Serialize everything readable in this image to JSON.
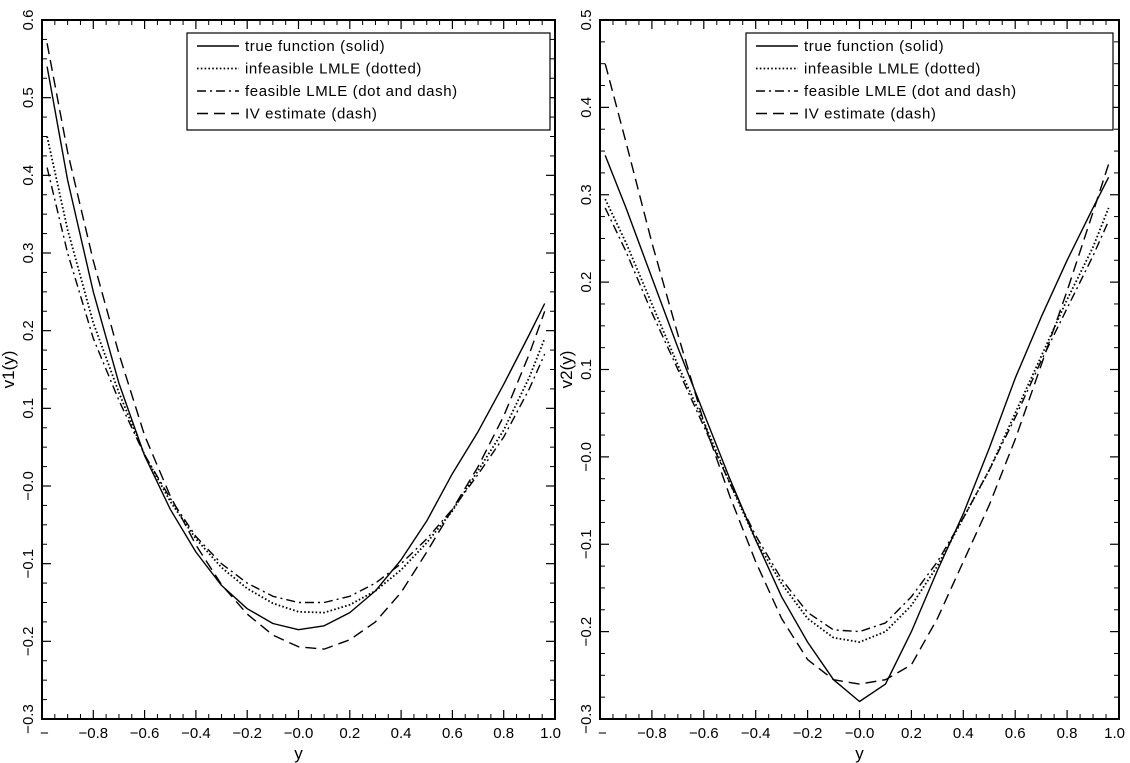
{
  "chart_data": [
    {
      "type": "line",
      "xlabel": "y",
      "ylabel": "v1(y)",
      "xlim": [
        -1.0,
        1.0
      ],
      "ylim": [
        -0.3,
        0.6
      ],
      "x_ticks": [
        -1.0,
        -0.8,
        -0.6,
        -0.4,
        -0.2,
        0.0,
        0.2,
        0.4,
        0.6,
        0.8,
        1.0
      ],
      "x_tick_labels": [
        "−",
        "−0.8",
        "−0.6",
        "−0.4",
        "−0.2",
        "−0.0",
        "0.2",
        "0.4",
        "0.6",
        "0.8",
        "1.0"
      ],
      "y_ticks": [
        -0.3,
        -0.2,
        -0.1,
        0.0,
        0.1,
        0.2,
        0.3,
        0.4,
        0.5,
        0.6
      ],
      "y_tick_labels": [
        "−0.3",
        "−0.2",
        "−0.1",
        "−0.0",
        "0.1",
        "0.2",
        "0.3",
        "0.4",
        "0.5",
        "0.6"
      ],
      "legend_position": "top-right",
      "grid": false,
      "x": [
        -0.98,
        -0.9,
        -0.8,
        -0.7,
        -0.6,
        -0.5,
        -0.4,
        -0.3,
        -0.2,
        -0.1,
        0.0,
        0.1,
        0.2,
        0.3,
        0.4,
        0.5,
        0.6,
        0.7,
        0.8,
        0.9,
        0.96
      ],
      "series": [
        {
          "name": "true function (solid)",
          "dash": "solid",
          "values": [
            0.54,
            0.394,
            0.25,
            0.132,
            0.039,
            -0.03,
            -0.085,
            -0.128,
            -0.158,
            -0.177,
            -0.185,
            -0.18,
            -0.163,
            -0.135,
            -0.095,
            -0.045,
            0.016,
            0.07,
            0.131,
            0.195,
            0.235
          ]
        },
        {
          "name": "infeasible LMLE (dotted)",
          "dash": "dotted",
          "values": [
            0.45,
            0.33,
            0.21,
            0.12,
            0.04,
            -0.02,
            -0.068,
            -0.105,
            -0.132,
            -0.151,
            -0.162,
            -0.163,
            -0.153,
            -0.135,
            -0.108,
            -0.073,
            -0.032,
            0.02,
            0.072,
            0.14,
            0.19
          ]
        },
        {
          "name": "feasible LMLE (dot and dash)",
          "dash": "dashdot",
          "values": [
            0.41,
            0.3,
            0.19,
            0.11,
            0.04,
            -0.016,
            -0.065,
            -0.1,
            -0.125,
            -0.142,
            -0.15,
            -0.15,
            -0.142,
            -0.125,
            -0.1,
            -0.068,
            -0.03,
            0.015,
            0.063,
            0.125,
            0.17
          ]
        },
        {
          "name": "IV estimate (dash)",
          "dash": "dashed",
          "values": [
            0.57,
            0.43,
            0.29,
            0.17,
            0.065,
            -0.013,
            -0.076,
            -0.127,
            -0.165,
            -0.192,
            -0.207,
            -0.21,
            -0.198,
            -0.175,
            -0.137,
            -0.085,
            -0.03,
            0.025,
            0.09,
            0.17,
            0.225
          ]
        }
      ]
    },
    {
      "type": "line",
      "xlabel": "y",
      "ylabel": "v2(y)",
      "xlim": [
        -1.0,
        1.0
      ],
      "ylim": [
        -0.3,
        0.5
      ],
      "x_ticks": [
        -1.0,
        -0.8,
        -0.6,
        -0.4,
        -0.2,
        0.0,
        0.2,
        0.4,
        0.6,
        0.8,
        1.0
      ],
      "x_tick_labels": [
        "−",
        "−0.8",
        "−0.6",
        "−0.4",
        "−0.2",
        "−0.0",
        "0.2",
        "0.4",
        "0.6",
        "0.8",
        "1.0"
      ],
      "y_ticks": [
        -0.3,
        -0.2,
        -0.1,
        0.0,
        0.1,
        0.2,
        0.3,
        0.4,
        0.5
      ],
      "y_tick_labels": [
        "−0.3",
        "−0.2",
        "−0.1",
        "−0.0",
        "0.1",
        "0.2",
        "0.3",
        "0.4",
        "0.5"
      ],
      "legend_position": "top-right",
      "grid": false,
      "x": [
        -0.98,
        -0.9,
        -0.8,
        -0.7,
        -0.6,
        -0.5,
        -0.4,
        -0.3,
        -0.2,
        -0.1,
        0.0,
        0.1,
        0.2,
        0.3,
        0.4,
        0.5,
        0.6,
        0.7,
        0.8,
        0.9,
        0.96
      ],
      "series": [
        {
          "name": "true function (solid)",
          "dash": "solid",
          "values": [
            0.345,
            0.285,
            0.205,
            0.125,
            0.05,
            -0.025,
            -0.095,
            -0.16,
            -0.212,
            -0.255,
            -0.28,
            -0.26,
            -0.2,
            -0.13,
            -0.065,
            0.01,
            0.09,
            0.16,
            0.225,
            0.285,
            0.32
          ]
        },
        {
          "name": "infeasible LMLE (dotted)",
          "dash": "dotted",
          "values": [
            0.295,
            0.245,
            0.175,
            0.105,
            0.04,
            -0.03,
            -0.095,
            -0.145,
            -0.185,
            -0.207,
            -0.212,
            -0.2,
            -0.17,
            -0.125,
            -0.07,
            -0.015,
            0.05,
            0.115,
            0.18,
            0.24,
            0.285
          ]
        },
        {
          "name": "feasible LMLE (dot and dash)",
          "dash": "dashdot",
          "values": [
            0.285,
            0.235,
            0.165,
            0.1,
            0.035,
            -0.03,
            -0.09,
            -0.14,
            -0.178,
            -0.198,
            -0.2,
            -0.19,
            -0.16,
            -0.12,
            -0.07,
            -0.015,
            0.045,
            0.11,
            0.17,
            0.23,
            0.27
          ]
        },
        {
          "name": "IV estimate (dash)",
          "dash": "dashed",
          "values": [
            0.45,
            0.36,
            0.245,
            0.14,
            0.04,
            -0.045,
            -0.12,
            -0.185,
            -0.232,
            -0.255,
            -0.26,
            -0.255,
            -0.238,
            -0.185,
            -0.12,
            -0.055,
            0.02,
            0.105,
            0.19,
            0.28,
            0.335
          ]
        }
      ]
    }
  ]
}
